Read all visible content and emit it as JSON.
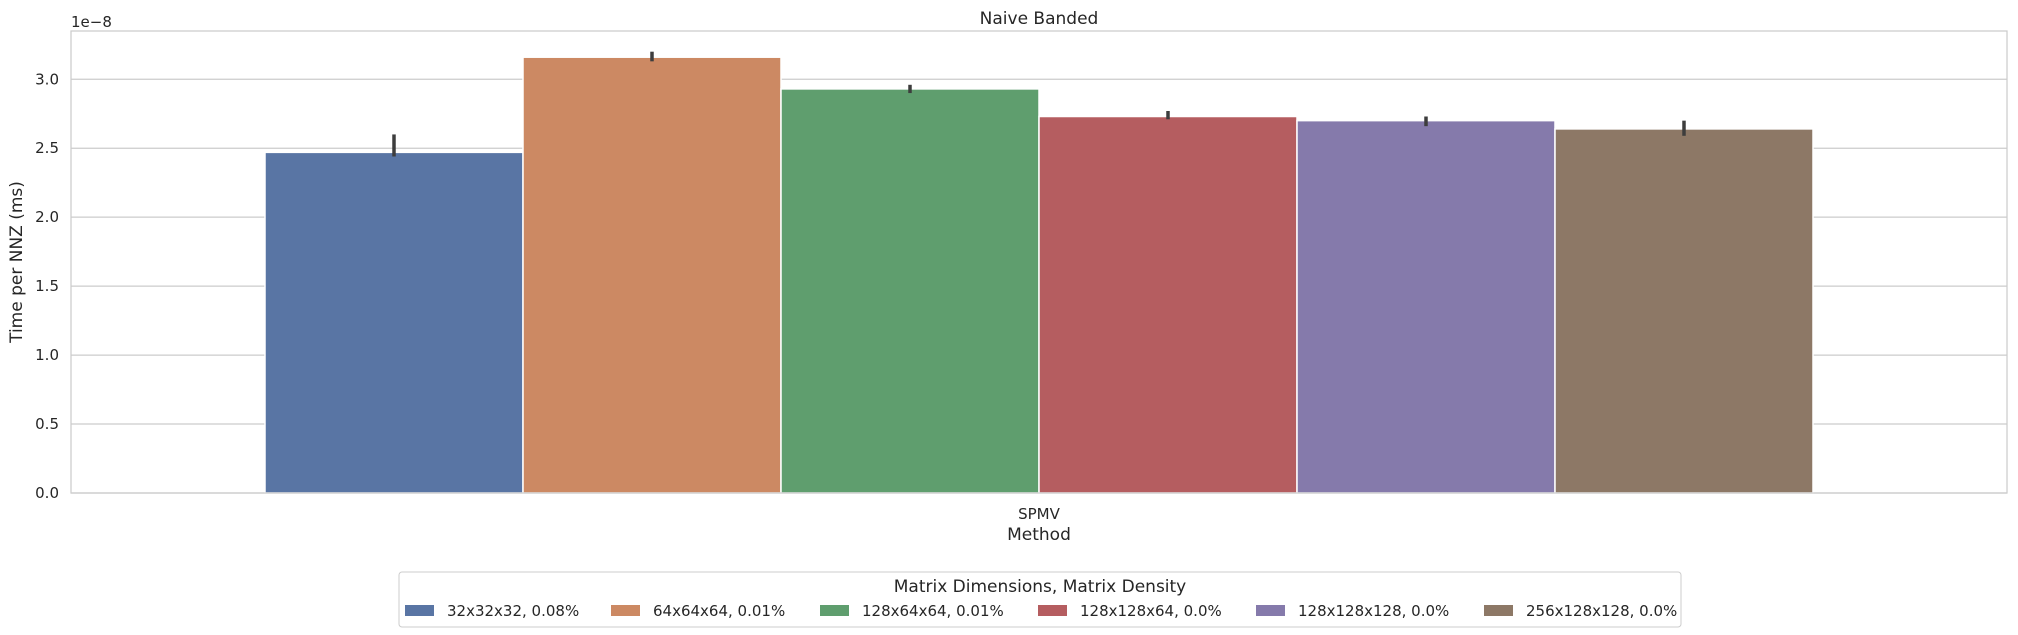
{
  "chart_data": {
    "type": "bar",
    "title": "Naive Banded",
    "xlabel": "Method",
    "ylabel": "Time per NNZ (ms)",
    "scale_label": "1e−8",
    "categories": [
      "SPMV"
    ],
    "ylim": [
      0,
      3.35
    ],
    "yticks": [
      "0.0",
      "0.5",
      "1.0",
      "1.5",
      "2.0",
      "2.5",
      "3.0"
    ],
    "grid": "horizontal",
    "legend_title": "Matrix Dimensions, Matrix Density",
    "legend_position": "bottom-center",
    "series": [
      {
        "name": "32x32x32, 0.08%",
        "values": [
          2.47
        ],
        "error": [
          2.44,
          2.6
        ],
        "color": "#5975a4"
      },
      {
        "name": "64x64x64, 0.01%",
        "values": [
          3.16
        ],
        "error": [
          3.13,
          3.2
        ],
        "color": "#cc8963"
      },
      {
        "name": "128x64x64, 0.01%",
        "values": [
          2.93
        ],
        "error": [
          2.9,
          2.96
        ],
        "color": "#5f9e6e"
      },
      {
        "name": "128x128x64, 0.0%",
        "values": [
          2.73
        ],
        "error": [
          2.71,
          2.77
        ],
        "color": "#b55d60"
      },
      {
        "name": "128x128x128, 0.0%",
        "values": [
          2.7
        ],
        "error": [
          2.66,
          2.73
        ],
        "color": "#857aab"
      },
      {
        "name": "256x128x128, 0.0%",
        "values": [
          2.64
        ],
        "error": [
          2.59,
          2.7
        ],
        "color": "#8d7866"
      }
    ]
  }
}
